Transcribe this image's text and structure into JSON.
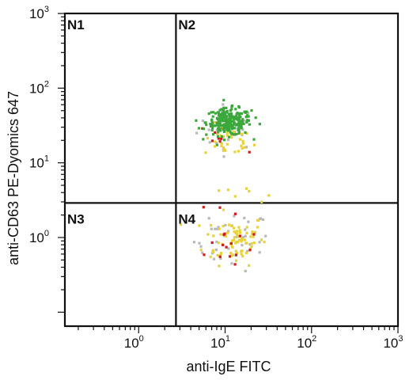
{
  "chart_data": {
    "type": "scatter",
    "title": "",
    "xlabel": "anti-IgE FITC",
    "ylabel": "anti-CD63 PE-Dyomics 647",
    "xscale": "log",
    "yscale": "log",
    "xlim": [
      0.14,
      1000
    ],
    "ylim": [
      0.065,
      1000
    ],
    "x_ticks": [
      {
        "base": "10",
        "exp": "0",
        "value": 1
      },
      {
        "base": "10",
        "exp": "1",
        "value": 10
      },
      {
        "base": "10",
        "exp": "2",
        "value": 100
      },
      {
        "base": "10",
        "exp": "3",
        "value": 1000
      }
    ],
    "y_ticks": [
      {
        "base": "10",
        "exp": "0",
        "value": 1
      },
      {
        "base": "10",
        "exp": "1",
        "value": 10
      },
      {
        "base": "10",
        "exp": "2",
        "value": 100
      },
      {
        "base": "10",
        "exp": "3",
        "value": 1000
      }
    ],
    "quadrant_gates": {
      "x": 2.7,
      "y": 2.9
    },
    "quadrants": [
      "N1",
      "N2",
      "N3",
      "N4"
    ],
    "colors": {
      "high_density": "#3aa83a",
      "medium_density": "#e8d23a",
      "low_density": "#d21a1a",
      "sparse": "#b9b9b9",
      "frame": "#111111"
    },
    "populations": [
      {
        "density": "high",
        "color": "#3aa83a",
        "center": [
          11,
          35
        ],
        "spread": [
          0.13,
          0.09
        ],
        "n": 230
      },
      {
        "density": "medium",
        "color": "#e8d23a",
        "center": [
          11,
          20
        ],
        "spread": [
          0.14,
          0.11
        ],
        "n": 40
      },
      {
        "density": "low",
        "color": "#d21a1a",
        "center": [
          9,
          22
        ],
        "spread": [
          0.12,
          0.1
        ],
        "n": 12
      },
      {
        "density": "sparse",
        "color": "#b9b9b9",
        "center": [
          11,
          30
        ],
        "spread": [
          0.18,
          0.15
        ],
        "n": 30
      },
      {
        "density": "medium",
        "color": "#e8d23a",
        "center": [
          13,
          0.95
        ],
        "spread": [
          0.18,
          0.17
        ],
        "n": 75
      },
      {
        "density": "low",
        "color": "#d21a1a",
        "center": [
          10,
          0.8
        ],
        "spread": [
          0.16,
          0.17
        ],
        "n": 14
      },
      {
        "density": "sparse",
        "color": "#b9b9b9",
        "center": [
          12,
          0.9
        ],
        "spread": [
          0.22,
          0.2
        ],
        "n": 40
      },
      {
        "density": "medium",
        "color": "#e8d23a",
        "center": [
          14,
          4.0
        ],
        "spread": [
          0.16,
          0.1
        ],
        "n": 8
      },
      {
        "density": "low",
        "color": "#d21a1a",
        "center": [
          9,
          3.0
        ],
        "spread": [
          0.1,
          0.1
        ],
        "n": 3
      }
    ]
  }
}
